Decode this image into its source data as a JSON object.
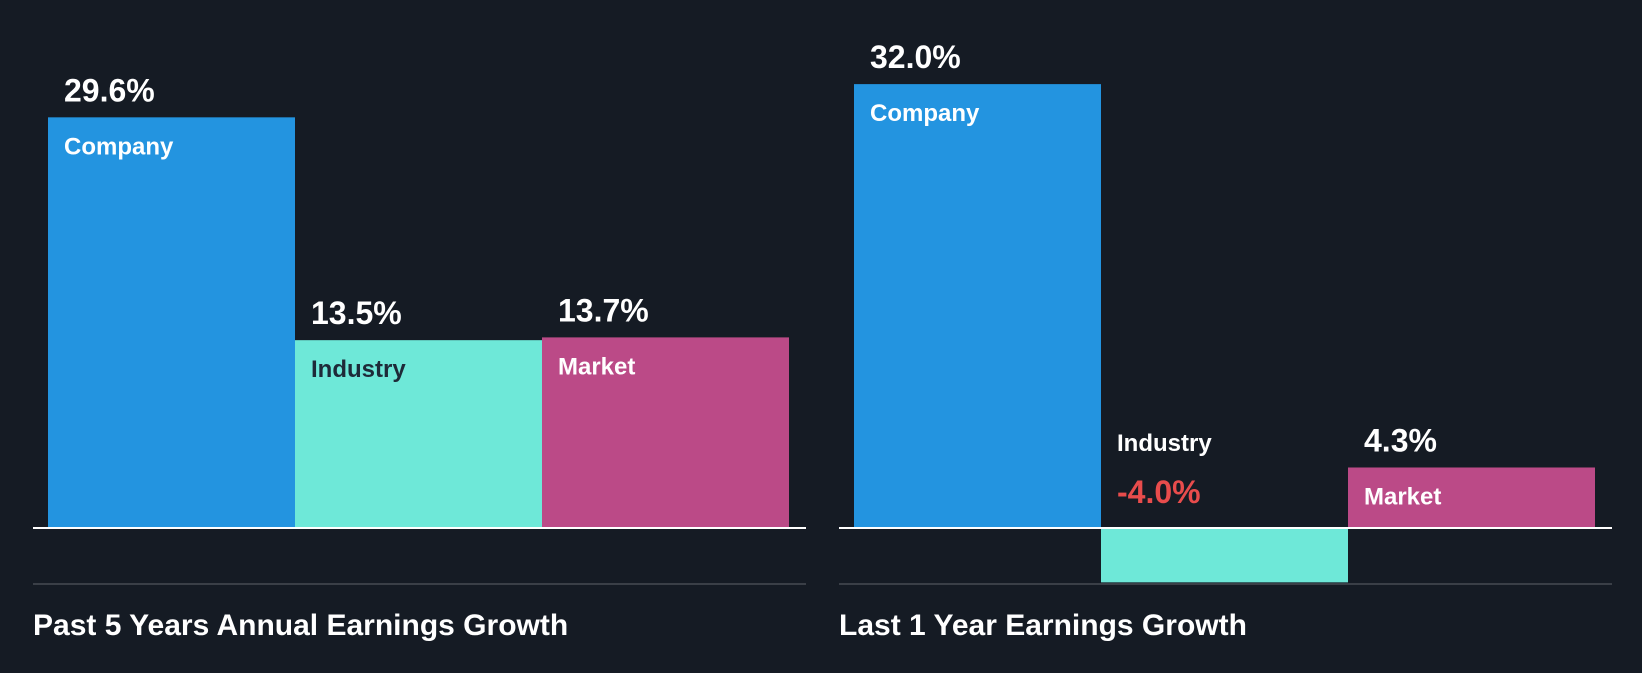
{
  "colors": {
    "background": "#151b24",
    "company": "#2394e0",
    "industry": "#6ee8d8",
    "market": "#bb4a87",
    "value_text": "#ffffff",
    "negative_text": "#e84c4c",
    "dark_label": "#1e2a38",
    "divider": "#3a3f47",
    "baseline": "#ffffff"
  },
  "chart_data": [
    {
      "type": "bar",
      "title": "Past 5 Years Annual Earnings Growth",
      "categories": [
        "Company",
        "Industry",
        "Market"
      ],
      "values": [
        29.6,
        13.5,
        13.7
      ],
      "value_labels": [
        "29.6%",
        "13.5%",
        "13.7%"
      ],
      "unit": "%",
      "ylim": [
        -4.0,
        32.0
      ],
      "grid": false,
      "legend": "none"
    },
    {
      "type": "bar",
      "title": "Last 1 Year Earnings Growth",
      "categories": [
        "Company",
        "Industry",
        "Market"
      ],
      "values": [
        32.0,
        -4.0,
        4.3
      ],
      "value_labels": [
        "32.0%",
        "-4.0%",
        "4.3%"
      ],
      "unit": "%",
      "ylim": [
        -4.0,
        32.0
      ],
      "grid": false,
      "legend": "none"
    }
  ]
}
